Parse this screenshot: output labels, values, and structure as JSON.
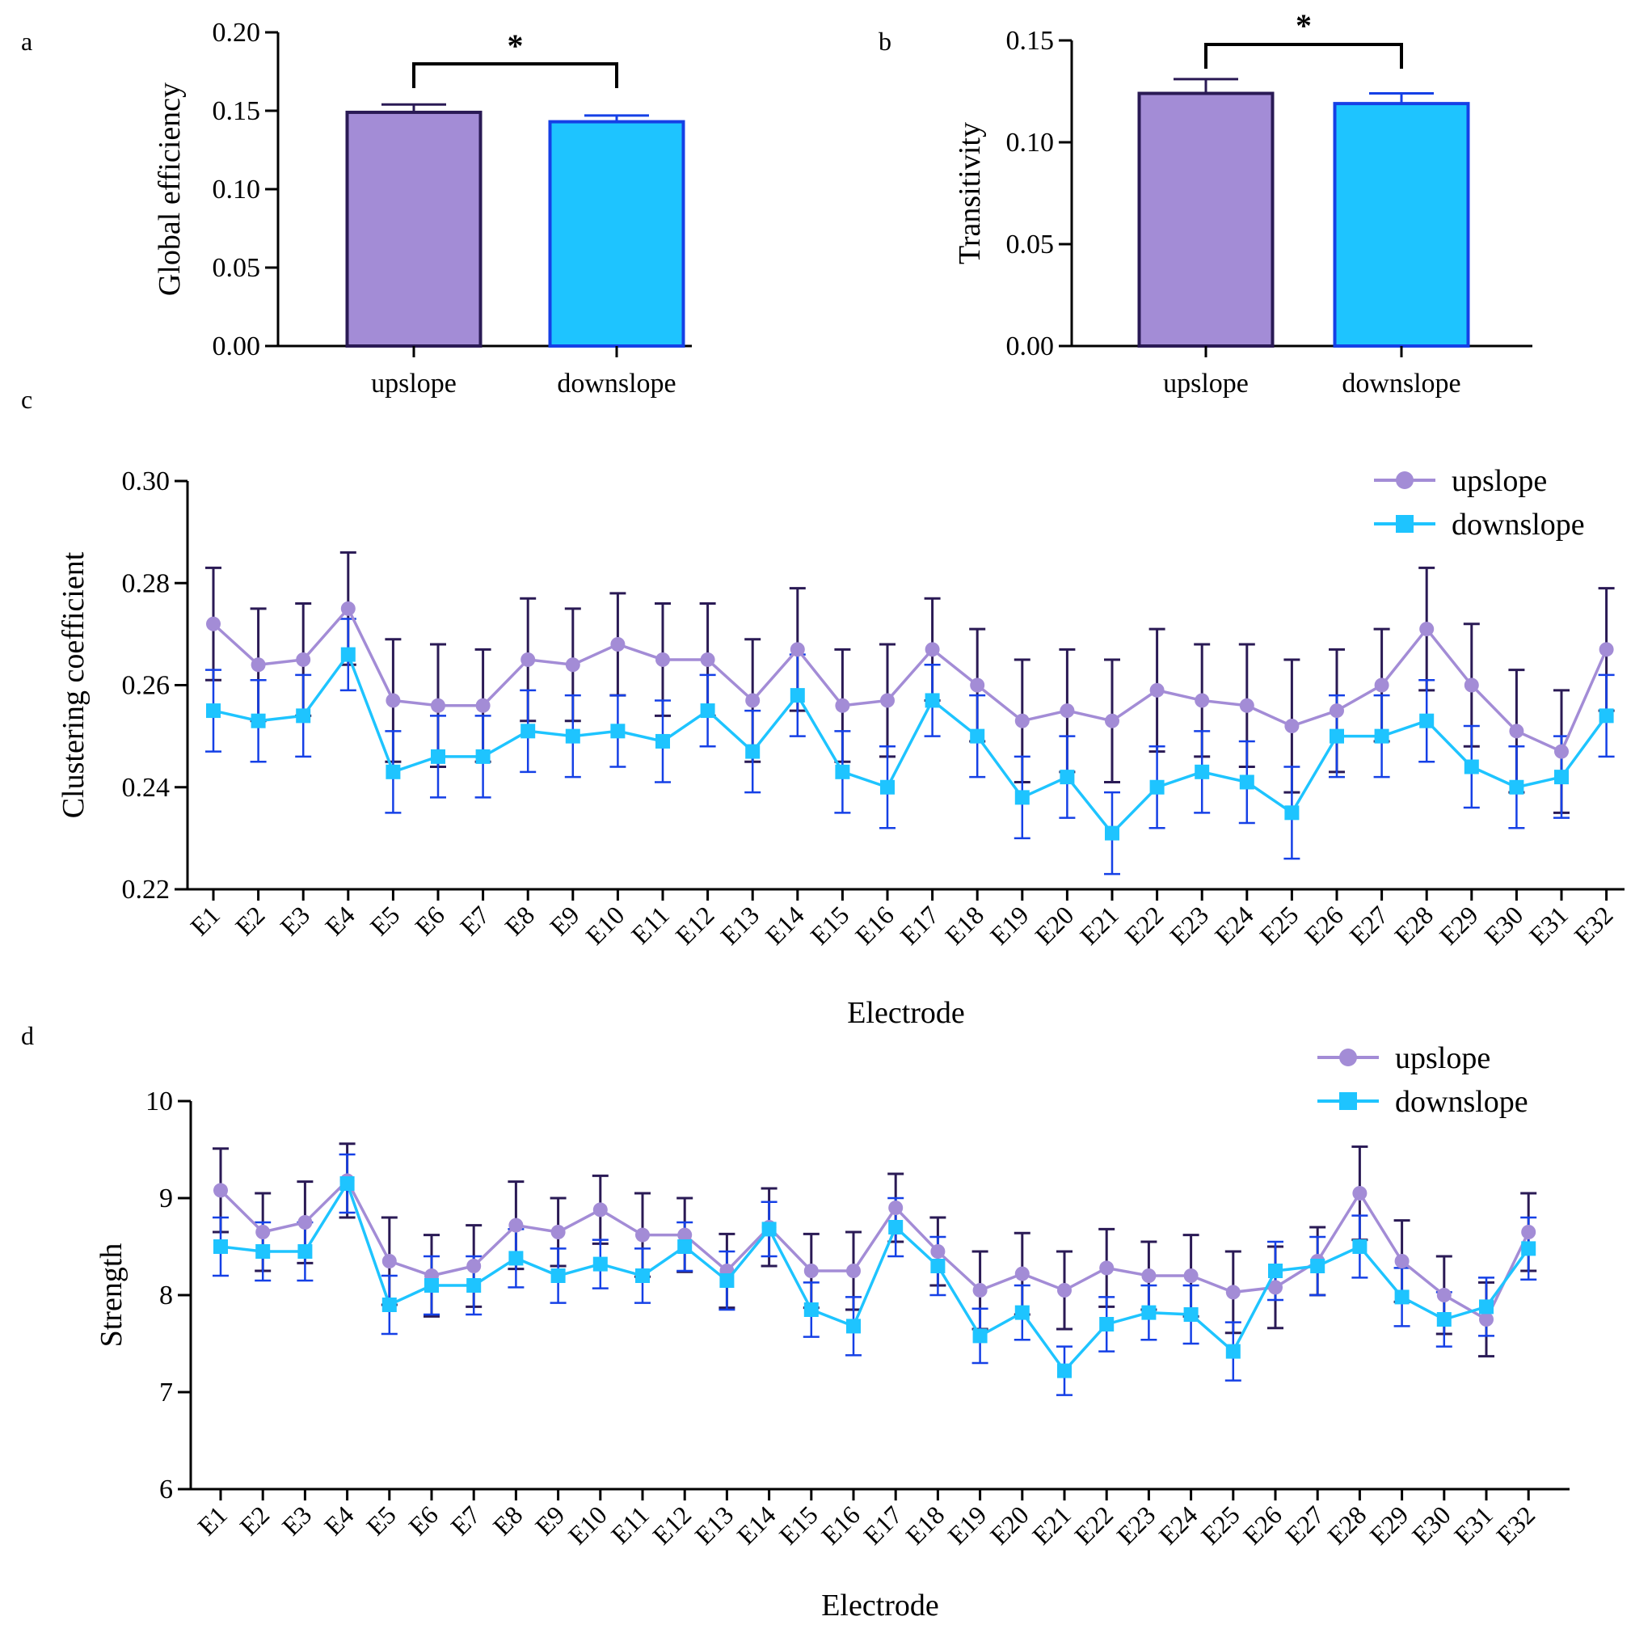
{
  "chart_data": [
    {
      "panel": "a",
      "type": "bar",
      "categories": [
        "upslope",
        "downslope"
      ],
      "values": [
        0.149,
        0.143
      ],
      "errors": [
        0.005,
        0.004
      ],
      "ylabel": "Global efficiency",
      "ylim": [
        0,
        0.2
      ],
      "yticks": [
        "0.00",
        "0.05",
        "0.10",
        "0.15",
        "0.20"
      ],
      "significance": "*",
      "colors": [
        "#a38cd6",
        "#1ec4ff"
      ],
      "edge_colors": [
        "#2a1a55",
        "#1540e6"
      ]
    },
    {
      "panel": "b",
      "type": "bar",
      "categories": [
        "upslope",
        "downslope"
      ],
      "values": [
        0.124,
        0.119
      ],
      "errors": [
        0.007,
        0.005
      ],
      "ylabel": "Transitivity",
      "ylim": [
        0,
        0.15
      ],
      "yticks": [
        "0.00",
        "0.05",
        "0.10",
        "0.15"
      ],
      "significance": "*",
      "colors": [
        "#a38cd6",
        "#1ec4ff"
      ],
      "edge_colors": [
        "#2a1a55",
        "#1540e6"
      ]
    },
    {
      "panel": "c",
      "type": "line",
      "xlabel": "Electrode",
      "ylabel": "Clustering coefficient",
      "ylim": [
        0.22,
        0.3
      ],
      "yticks": [
        "0.22",
        "0.24",
        "0.26",
        "0.28",
        "0.30"
      ],
      "categories": [
        "E1",
        "E2",
        "E3",
        "E4",
        "E5",
        "E6",
        "E7",
        "E8",
        "E9",
        "E10",
        "E11",
        "E12",
        "E13",
        "E14",
        "E15",
        "E16",
        "E17",
        "E18",
        "E19",
        "E20",
        "E21",
        "E22",
        "E23",
        "E24",
        "E25",
        "E26",
        "E27",
        "E28",
        "E29",
        "E30",
        "E31",
        "E32"
      ],
      "series": [
        {
          "name": "upslope",
          "color": "#a38cd6",
          "error_color": "#2a1a55",
          "marker": "circle",
          "values": [
            0.272,
            0.264,
            0.265,
            0.275,
            0.257,
            0.256,
            0.256,
            0.265,
            0.264,
            0.268,
            0.265,
            0.265,
            0.257,
            0.267,
            0.256,
            0.257,
            0.267,
            0.26,
            0.253,
            0.255,
            0.253,
            0.259,
            0.257,
            0.256,
            0.252,
            0.255,
            0.26,
            0.271,
            0.26,
            0.251,
            0.247,
            0.267
          ],
          "errors": [
            0.011,
            0.011,
            0.011,
            0.011,
            0.012,
            0.012,
            0.011,
            0.012,
            0.011,
            0.01,
            0.011,
            0.011,
            0.012,
            0.012,
            0.011,
            0.011,
            0.01,
            0.011,
            0.012,
            0.012,
            0.012,
            0.012,
            0.011,
            0.012,
            0.013,
            0.012,
            0.011,
            0.012,
            0.012,
            0.012,
            0.012,
            0.012
          ]
        },
        {
          "name": "downslope",
          "color": "#1ec4ff",
          "error_color": "#1540e6",
          "marker": "square",
          "values": [
            0.255,
            0.253,
            0.254,
            0.266,
            0.243,
            0.246,
            0.246,
            0.251,
            0.25,
            0.251,
            0.249,
            0.255,
            0.247,
            0.258,
            0.243,
            0.24,
            0.257,
            0.25,
            0.238,
            0.242,
            0.231,
            0.24,
            0.243,
            0.241,
            0.235,
            0.25,
            0.25,
            0.253,
            0.244,
            0.24,
            0.242,
            0.254
          ],
          "errors": [
            0.008,
            0.008,
            0.008,
            0.007,
            0.008,
            0.008,
            0.008,
            0.008,
            0.008,
            0.007,
            0.008,
            0.007,
            0.008,
            0.008,
            0.008,
            0.008,
            0.007,
            0.008,
            0.008,
            0.008,
            0.008,
            0.008,
            0.008,
            0.008,
            0.009,
            0.008,
            0.008,
            0.008,
            0.008,
            0.008,
            0.008,
            0.008
          ]
        }
      ],
      "legend_position": "top-right"
    },
    {
      "panel": "d",
      "type": "line",
      "xlabel": "Electrode",
      "ylabel": "Strength",
      "ylim": [
        6,
        10
      ],
      "yticks": [
        "6",
        "7",
        "8",
        "9",
        "10"
      ],
      "categories": [
        "E1",
        "E2",
        "E3",
        "E4",
        "E5",
        "E6",
        "E7",
        "E8",
        "E9",
        "E10",
        "E11",
        "E12",
        "E13",
        "E14",
        "E15",
        "E16",
        "E17",
        "E18",
        "E19",
        "E20",
        "E21",
        "E22",
        "E23",
        "E24",
        "E25",
        "E26",
        "E27",
        "E28",
        "E29",
        "E30",
        "E31",
        "E32"
      ],
      "series": [
        {
          "name": "upslope",
          "color": "#a38cd6",
          "error_color": "#2a1a55",
          "marker": "circle",
          "values": [
            9.08,
            8.65,
            8.75,
            9.18,
            8.35,
            8.2,
            8.3,
            8.72,
            8.65,
            8.88,
            8.62,
            8.62,
            8.25,
            8.7,
            8.25,
            8.25,
            8.9,
            8.45,
            8.05,
            8.22,
            8.05,
            8.28,
            8.2,
            8.2,
            8.03,
            8.08,
            8.35,
            9.05,
            8.35,
            8.0,
            7.75,
            8.65
          ],
          "errors": [
            0.43,
            0.4,
            0.42,
            0.38,
            0.45,
            0.42,
            0.42,
            0.45,
            0.35,
            0.35,
            0.43,
            0.38,
            0.38,
            0.4,
            0.38,
            0.4,
            0.35,
            0.35,
            0.4,
            0.42,
            0.4,
            0.4,
            0.35,
            0.42,
            0.42,
            0.42,
            0.35,
            0.48,
            0.42,
            0.4,
            0.38,
            0.4
          ]
        },
        {
          "name": "downslope",
          "color": "#1ec4ff",
          "error_color": "#1540e6",
          "marker": "square",
          "values": [
            8.5,
            8.45,
            8.45,
            9.15,
            7.9,
            8.1,
            8.1,
            8.38,
            8.2,
            8.32,
            8.2,
            8.5,
            8.15,
            8.68,
            7.85,
            7.68,
            8.7,
            8.3,
            7.58,
            7.82,
            7.22,
            7.7,
            7.82,
            7.8,
            7.42,
            8.25,
            8.3,
            8.5,
            7.98,
            7.75,
            7.88,
            8.48
          ],
          "errors": [
            0.3,
            0.3,
            0.3,
            0.3,
            0.3,
            0.3,
            0.3,
            0.3,
            0.28,
            0.25,
            0.28,
            0.25,
            0.3,
            0.28,
            0.28,
            0.3,
            0.3,
            0.3,
            0.28,
            0.28,
            0.25,
            0.28,
            0.28,
            0.3,
            0.3,
            0.3,
            0.3,
            0.32,
            0.3,
            0.28,
            0.3,
            0.32
          ]
        }
      ],
      "legend_position": "top-right"
    }
  ]
}
